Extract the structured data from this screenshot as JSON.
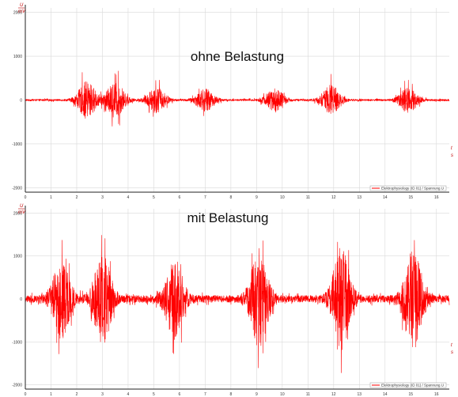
{
  "chart_data": [
    {
      "type": "line",
      "title": "",
      "annotation": "ohne Belastung",
      "ylabel_top": "U",
      "ylabel_bottom": "mV",
      "xlabel": "t",
      "x_unit": "s",
      "xlim": [
        0,
        16.5
      ],
      "ylim": [
        -2100,
        2100
      ],
      "x_ticks": [
        "0",
        "1",
        "2",
        "3",
        "4",
        "5",
        "6",
        "7",
        "8",
        "9",
        "10",
        "11",
        "12",
        "13",
        "14",
        "15",
        "16"
      ],
      "y_ticks": [
        "2000",
        "1000",
        "0",
        "-1000",
        "-2000"
      ],
      "grid": true,
      "legend": "bottom-right",
      "series": [
        {
          "name": "Elektrophysiology (ID 01) / Spannung U",
          "color": "#ff0000",
          "baseline_amplitude": 40,
          "bursts": [
            {
              "t": 2.4,
              "peak": 750
            },
            {
              "t": 3.5,
              "peak": 700
            },
            {
              "t": 5.1,
              "peak": 500
            },
            {
              "t": 7.0,
              "peak": 450
            },
            {
              "t": 9.7,
              "peak": 450
            },
            {
              "t": 11.9,
              "peak": 600
            },
            {
              "t": 14.9,
              "peak": 500
            }
          ]
        }
      ]
    },
    {
      "type": "line",
      "title": "",
      "annotation": "mit Belastung",
      "ylabel_top": "U",
      "ylabel_bottom": "mV",
      "xlabel": "t",
      "x_unit": "s",
      "xlim": [
        0,
        16.5
      ],
      "ylim": [
        -2100,
        2100
      ],
      "x_ticks": [
        "0",
        "1",
        "2",
        "3",
        "4",
        "5",
        "6",
        "7",
        "8",
        "9",
        "10",
        "11",
        "12",
        "13",
        "14",
        "15",
        "16"
      ],
      "y_ticks": [
        "2000",
        "1000",
        "0",
        "-1000",
        "-2000"
      ],
      "grid": true,
      "legend": "bottom-right",
      "series": [
        {
          "name": "Elektrophysiology (ID 01) / Spannung U",
          "color": "#ff0000",
          "baseline_amplitude": 150,
          "bursts": [
            {
              "t": 1.4,
              "peak": 1600
            },
            {
              "t": 3.0,
              "peak": 1800
            },
            {
              "t": 5.8,
              "peak": 1600
            },
            {
              "t": 9.1,
              "peak": 2000
            },
            {
              "t": 12.3,
              "peak": 2000
            },
            {
              "t": 15.1,
              "peak": 2000
            }
          ]
        }
      ]
    }
  ]
}
